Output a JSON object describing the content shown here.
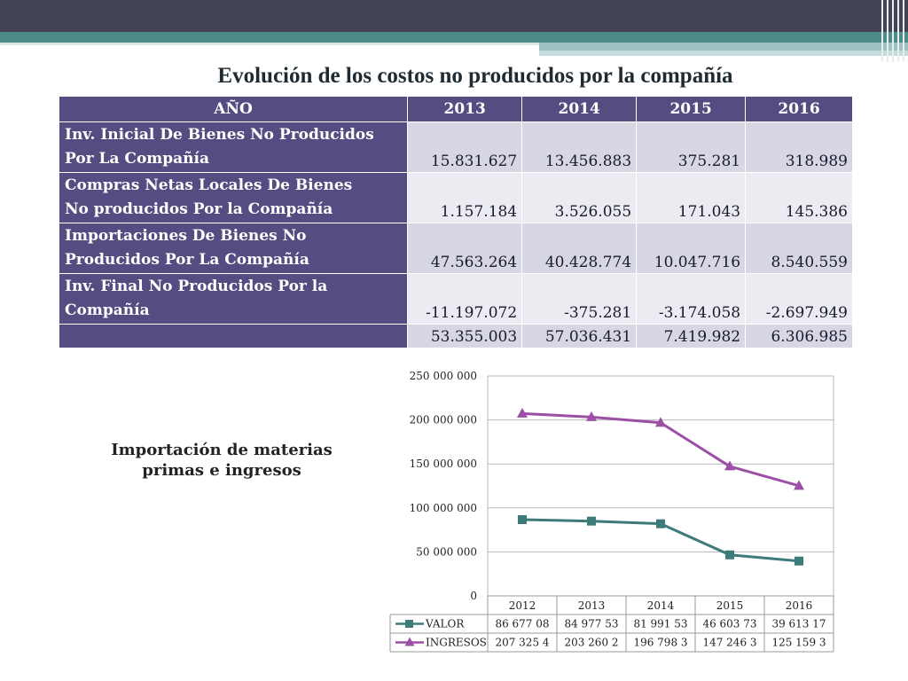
{
  "page_title": "Evolución de los costos no producidos por la compañía",
  "table": {
    "header": [
      "AÑO",
      "2013",
      "2014",
      "2015",
      "2016"
    ],
    "rows": [
      {
        "label_line1": "Inv. Inicial De Bienes No Producidos",
        "label_line2": "Por La Compañía",
        "values": [
          "15.831.627",
          "13.456.883",
          "375.281",
          "318.989"
        ]
      },
      {
        "label_line1": "Compras Netas Locales De Bienes",
        "label_line2": "No producidos Por la Compañía",
        "values": [
          "1.157.184",
          "3.526.055",
          "171.043",
          "145.386"
        ]
      },
      {
        "label_line1": "Importaciones De Bienes No",
        "label_line2": "Producidos Por La Compañía",
        "values": [
          "47.563.264",
          "40.428.774",
          "10.047.716",
          "8.540.559"
        ]
      },
      {
        "label_line1": "Inv. Final No Producidos Por la",
        "label_line2": "Compañía",
        "values": [
          "-11.197.072",
          "-375.281",
          "-3.174.058",
          "-2.697.949"
        ]
      }
    ],
    "totals": [
      "53.355.003",
      "57.036.431",
      "7.419.982",
      "6.306.985"
    ]
  },
  "chart_title_line1": "Importación de materias",
  "chart_title_line2": "primas e ingresos",
  "chart_data": {
    "type": "line",
    "title": "Importación de materias primas e ingresos",
    "categories": [
      "2012",
      "2013",
      "2014",
      "2015",
      "2016"
    ],
    "y_tick_labels": [
      "250 000 000",
      "200 000 000",
      "150 000 000",
      "100 000 000",
      "50 000 000",
      "0"
    ],
    "ylim": [
      0,
      250000000
    ],
    "grid": true,
    "legend": "data-table-below",
    "series": [
      {
        "name": "VALOR",
        "color": "#3d7b7b",
        "marker": "square",
        "values": [
          86677080,
          84977530,
          81991530,
          46603730,
          39613170
        ],
        "table_labels": [
          "86 677 08",
          "84 977 53",
          "81 991 53",
          "46 603 73",
          "39 613 17"
        ]
      },
      {
        "name": "INGRESOS",
        "color": "#9b4fa5",
        "marker": "triangle",
        "values": [
          207325400,
          203260200,
          196798300,
          147246300,
          125159300
        ],
        "table_labels": [
          "207 325 4",
          "203 260 2",
          "196 798 3",
          "147 246 3",
          "125 159 3"
        ]
      }
    ]
  }
}
